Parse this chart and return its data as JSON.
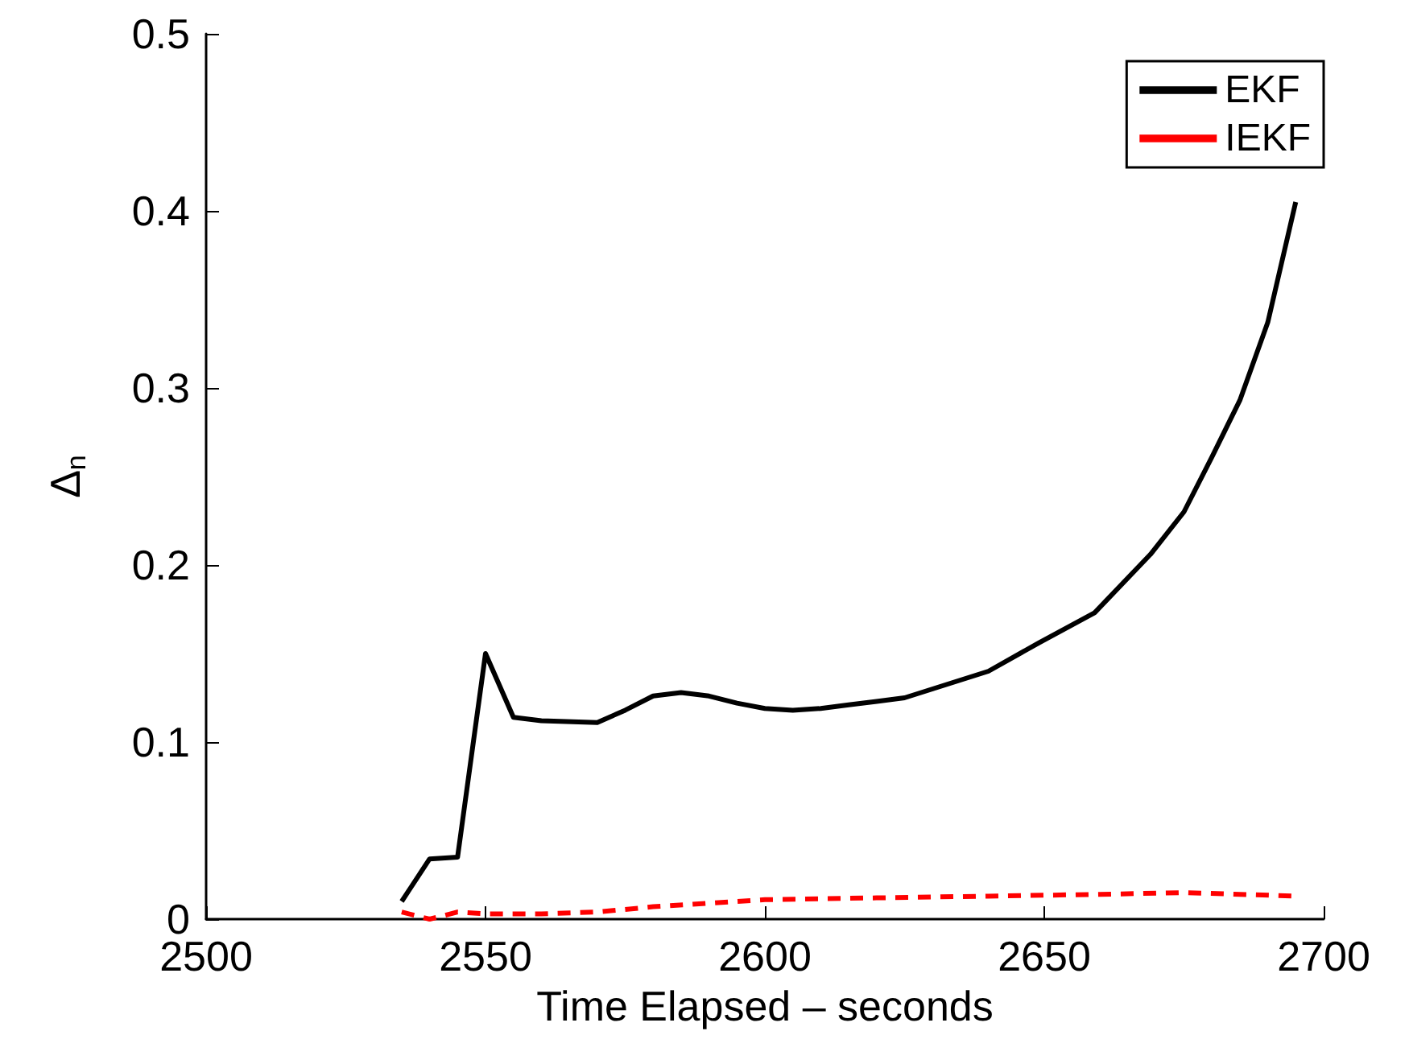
{
  "chart_data": {
    "type": "line",
    "xlabel": "Time Elapsed – seconds",
    "ylabel": "Δ$_{n}$",
    "xlim": [
      2500,
      2700
    ],
    "xticks": [
      2500,
      2550,
      2600,
      2650,
      2700
    ],
    "ylim": [
      0,
      0.5
    ],
    "yticks": [
      0,
      0.1,
      0.2,
      0.3,
      0.4,
      0.5
    ],
    "legend": "top right",
    "grid": false,
    "series": [
      {
        "name": "EKF",
        "color": "#000000",
        "line_style": "solid",
        "x": [
          2535,
          2540,
          2545,
          2550,
          2555,
          2560,
          2570,
          2575,
          2580,
          2585,
          2590,
          2595,
          2600,
          2605,
          2610,
          2615,
          2620,
          2625,
          2630,
          2640,
          2649,
          2659,
          2669,
          2675,
          2680,
          2685,
          2690,
          2695
        ],
        "values": [
          0.01,
          0.034,
          0.035,
          0.15,
          0.114,
          0.112,
          0.111,
          0.118,
          0.126,
          0.128,
          0.126,
          0.122,
          0.119,
          0.118,
          0.119,
          0.121,
          0.123,
          0.125,
          0.13,
          0.14,
          0.156,
          0.173,
          0.206,
          0.23,
          0.261,
          0.293,
          0.337,
          0.405
        ]
      },
      {
        "name": "IEKF",
        "color": "#ff0000",
        "line_style": "dashed",
        "x": [
          2535,
          2540,
          2545,
          2550,
          2560,
          2570,
          2580,
          2590,
          2600,
          2620,
          2640,
          2660,
          2675,
          2695
        ],
        "values": [
          0.004,
          0.0,
          0.004,
          0.003,
          0.003,
          0.004,
          0.007,
          0.009,
          0.011,
          0.012,
          0.013,
          0.014,
          0.015,
          0.013
        ]
      }
    ]
  }
}
